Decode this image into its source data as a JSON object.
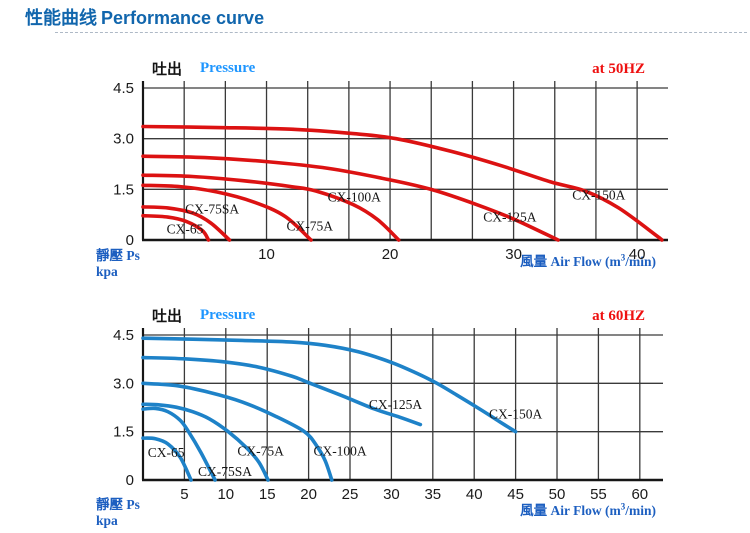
{
  "page": {
    "title_cjk": "性能曲线",
    "title_en": "Performance curve"
  },
  "colors": {
    "title_blue": "#1166ad",
    "pressure_blue": "#1e96ff",
    "axis_caption_blue": "#1d5fc0",
    "freq_red": "#ee1010",
    "curve_red": "#dc1212",
    "curve_blue": "#1e82c8",
    "grid": "#3a3a3a",
    "axis": "#161616"
  },
  "captions": {
    "y_line1": "靜壓 Ps",
    "y_line2": "kpa",
    "x_pre": "風量 Air Flow (m",
    "x_sup": "3",
    "x_post": "/min)"
  },
  "chart_data": [
    {
      "type": "line",
      "header_cjk": "吐出",
      "header_en": "Pressure",
      "freq": "at 50HZ",
      "color": "#dc1212",
      "xlim": [
        0,
        42.5
      ],
      "ylim": [
        0,
        4.5
      ],
      "grid_x_step": 3.3333,
      "grid_y_lines": [
        1.5,
        3.0,
        4.5
      ],
      "xticks": [
        {
          "v": 10,
          "label": "10"
        },
        {
          "v": 20,
          "label": "20"
        },
        {
          "v": 30,
          "label": "30"
        },
        {
          "v": 40,
          "label": "40"
        }
      ],
      "yticks": [
        {
          "v": 0,
          "label": "0"
        },
        {
          "v": 1.5,
          "label": "1.5"
        },
        {
          "v": 3,
          "label": "3.0"
        },
        {
          "v": 4.5,
          "label": "4.5"
        }
      ],
      "xlabel": "風量 Air Flow (m³/min)",
      "ylabel": "靜壓 Ps kpa",
      "series": [
        {
          "name": "CX-65",
          "label_pos": [
            3.4,
            0.33
          ],
          "points": [
            [
              0,
              0.72
            ],
            [
              2,
              0.68
            ],
            [
              3.5,
              0.55
            ],
            [
              4.8,
              0.28
            ],
            [
              5.3,
              0
            ]
          ]
        },
        {
          "name": "CX-75SA",
          "label_pos": [
            5.6,
            0.92
          ],
          "points": [
            [
              0,
              0.98
            ],
            [
              2,
              0.95
            ],
            [
              4,
              0.8
            ],
            [
              5.5,
              0.5
            ],
            [
              7.0,
              0
            ]
          ]
        },
        {
          "name": "CX-75A",
          "label_pos": [
            13.5,
            0.42
          ],
          "points": [
            [
              0,
              1.62
            ],
            [
              3,
              1.58
            ],
            [
              6,
              1.42
            ],
            [
              9,
              1.12
            ],
            [
              11.5,
              0.7
            ],
            [
              13.6,
              0
            ]
          ]
        },
        {
          "name": "CX-100A",
          "label_pos": [
            17.1,
            1.28
          ],
          "points": [
            [
              0,
              1.92
            ],
            [
              4,
              1.88
            ],
            [
              8,
              1.76
            ],
            [
              12,
              1.58
            ],
            [
              14,
              1.45
            ],
            [
              17,
              1.05
            ],
            [
              19,
              0.6
            ],
            [
              20.7,
              0
            ]
          ]
        },
        {
          "name": "CX-125A",
          "label_pos": [
            29.7,
            0.68
          ],
          "points": [
            [
              0,
              2.48
            ],
            [
              5,
              2.44
            ],
            [
              10,
              2.32
            ],
            [
              15,
              2.12
            ],
            [
              20,
              1.78
            ],
            [
              23.5,
              1.48
            ],
            [
              27,
              1.05
            ],
            [
              30,
              0.62
            ],
            [
              33.6,
              0
            ]
          ]
        },
        {
          "name": "CX-150A",
          "label_pos": [
            36.9,
            1.33
          ],
          "points": [
            [
              0,
              3.36
            ],
            [
              6,
              3.33
            ],
            [
              12,
              3.28
            ],
            [
              17,
              3.15
            ],
            [
              20.5,
              3.0
            ],
            [
              25,
              2.62
            ],
            [
              29,
              2.2
            ],
            [
              33,
              1.72
            ],
            [
              35.8,
              1.45
            ],
            [
              38.5,
              0.95
            ],
            [
              41.6,
              0.12
            ],
            [
              42,
              0
            ]
          ]
        }
      ]
    },
    {
      "type": "line",
      "header_cjk": "吐出",
      "header_en": "Pressure",
      "freq": "at 60HZ",
      "color": "#1e82c8",
      "xlim": [
        0,
        62.8
      ],
      "ylim": [
        0,
        4.5
      ],
      "grid_x_step": 5,
      "grid_y_lines": [
        1.5,
        3.0,
        4.5
      ],
      "xticks": [
        {
          "v": 5,
          "label": "5"
        },
        {
          "v": 10,
          "label": "10"
        },
        {
          "v": 15,
          "label": "15"
        },
        {
          "v": 20,
          "label": "20"
        },
        {
          "v": 25,
          "label": "25"
        },
        {
          "v": 30,
          "label": "30"
        },
        {
          "v": 35,
          "label": "35"
        },
        {
          "v": 40,
          "label": "40"
        },
        {
          "v": 45,
          "label": "45"
        },
        {
          "v": 50,
          "label": "50"
        },
        {
          "v": 55,
          "label": "55"
        },
        {
          "v": 60,
          "label": "60"
        }
      ],
      "yticks": [
        {
          "v": 0,
          "label": "0"
        },
        {
          "v": 1.5,
          "label": "1.5"
        },
        {
          "v": 3,
          "label": "3.0"
        },
        {
          "v": 4.5,
          "label": "4.5"
        }
      ],
      "xlabel": "風量 Air Flow (m³/min)",
      "ylabel": "靜壓 Ps kpa",
      "series": [
        {
          "name": "CX-65",
          "label_pos": [
            2.8,
            0.85
          ],
          "points": [
            [
              0,
              1.3
            ],
            [
              1.5,
              1.28
            ],
            [
              3,
              1.12
            ],
            [
              4.5,
              0.7
            ],
            [
              5.8,
              0
            ]
          ]
        },
        {
          "name": "CX-75SA",
          "label_pos": [
            9.9,
            0.27
          ],
          "points": [
            [
              0,
              2.2
            ],
            [
              1.5,
              2.22
            ],
            [
              3,
              2.12
            ],
            [
              4.5,
              1.85
            ],
            [
              5.5,
              1.5
            ],
            [
              7,
              0.85
            ],
            [
              8.7,
              0
            ]
          ]
        },
        {
          "name": "CX-75A",
          "label_pos": [
            14.2,
            0.9
          ],
          "points": [
            [
              0,
              2.35
            ],
            [
              2,
              2.33
            ],
            [
              4,
              2.26
            ],
            [
              6,
              2.12
            ],
            [
              8,
              1.9
            ],
            [
              10.3,
              1.5
            ],
            [
              12.5,
              1.0
            ],
            [
              14,
              0.55
            ],
            [
              15.1,
              0
            ]
          ]
        },
        {
          "name": "CX-100A",
          "label_pos": [
            23.8,
            0.9
          ],
          "points": [
            [
              0,
              3.0
            ],
            [
              4,
              2.93
            ],
            [
              8,
              2.72
            ],
            [
              12,
              2.42
            ],
            [
              16,
              1.98
            ],
            [
              19.5,
              1.5
            ],
            [
              21,
              1.05
            ],
            [
              22,
              0.6
            ],
            [
              22.8,
              0
            ]
          ]
        },
        {
          "name": "CX-125A",
          "label_pos": [
            30.5,
            2.35
          ],
          "points": [
            [
              0,
              3.8
            ],
            [
              5,
              3.76
            ],
            [
              10,
              3.66
            ],
            [
              14,
              3.5
            ],
            [
              18,
              3.22
            ],
            [
              20,
              3.02
            ],
            [
              24,
              2.62
            ],
            [
              28,
              2.2
            ],
            [
              31,
              1.95
            ],
            [
              33.5,
              1.72
            ]
          ]
        },
        {
          "name": "CX-150A",
          "label_pos": [
            45,
            2.05
          ],
          "points": [
            [
              0,
              4.4
            ],
            [
              6,
              4.37
            ],
            [
              12,
              4.33
            ],
            [
              18,
              4.28
            ],
            [
              22,
              4.18
            ],
            [
              26,
              3.98
            ],
            [
              30,
              3.65
            ],
            [
              33,
              3.32
            ],
            [
              35.5,
              3.0
            ],
            [
              38,
              2.62
            ],
            [
              41,
              2.15
            ],
            [
              43,
              1.82
            ],
            [
              45,
              1.5
            ]
          ]
        }
      ]
    }
  ]
}
